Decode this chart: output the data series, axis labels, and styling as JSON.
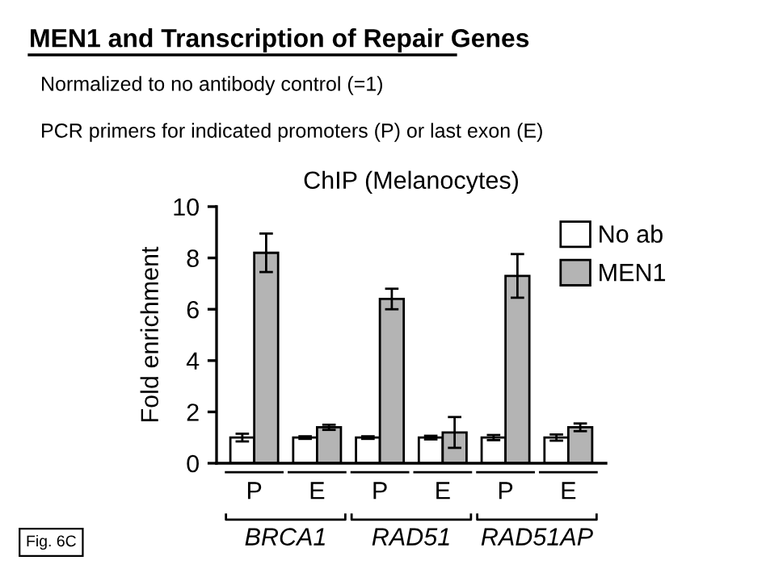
{
  "chart_data": {
    "type": "bar",
    "title": "MEN1 and Transcription of Repair Genes",
    "subtitle": "ChIP (Melanocytes)",
    "ylabel": "Fold enrichment",
    "annotations": [
      "Normalized to no antibody control (=1)",
      "PCR primers for indicated promoters (P) or last exon (E)",
      "BRCA1",
      "RAD51",
      "RAD51AP",
      "Fig. 6C"
    ],
    "categories": [
      "P",
      "E",
      "P",
      "E",
      "P",
      "E"
    ],
    "series": [
      {
        "name": "No ab",
        "color": "#ffffff",
        "values": [
          1,
          1,
          1,
          1,
          1,
          1
        ],
        "errors": [
          0.15,
          0.05,
          0.05,
          0.07,
          0.1,
          0.12
        ]
      },
      {
        "name": "MEN1",
        "color": "#b4b4b4",
        "values": [
          8.2,
          1.4,
          6.4,
          1.2,
          7.3,
          1.4
        ],
        "errors": [
          0.75,
          0.1,
          0.4,
          0.6,
          0.85,
          0.15
        ]
      }
    ],
    "ylim": [
      0,
      10
    ],
    "yticks": [
      0,
      2,
      4,
      6,
      8,
      10
    ],
    "grid": false,
    "legend": "top right"
  }
}
